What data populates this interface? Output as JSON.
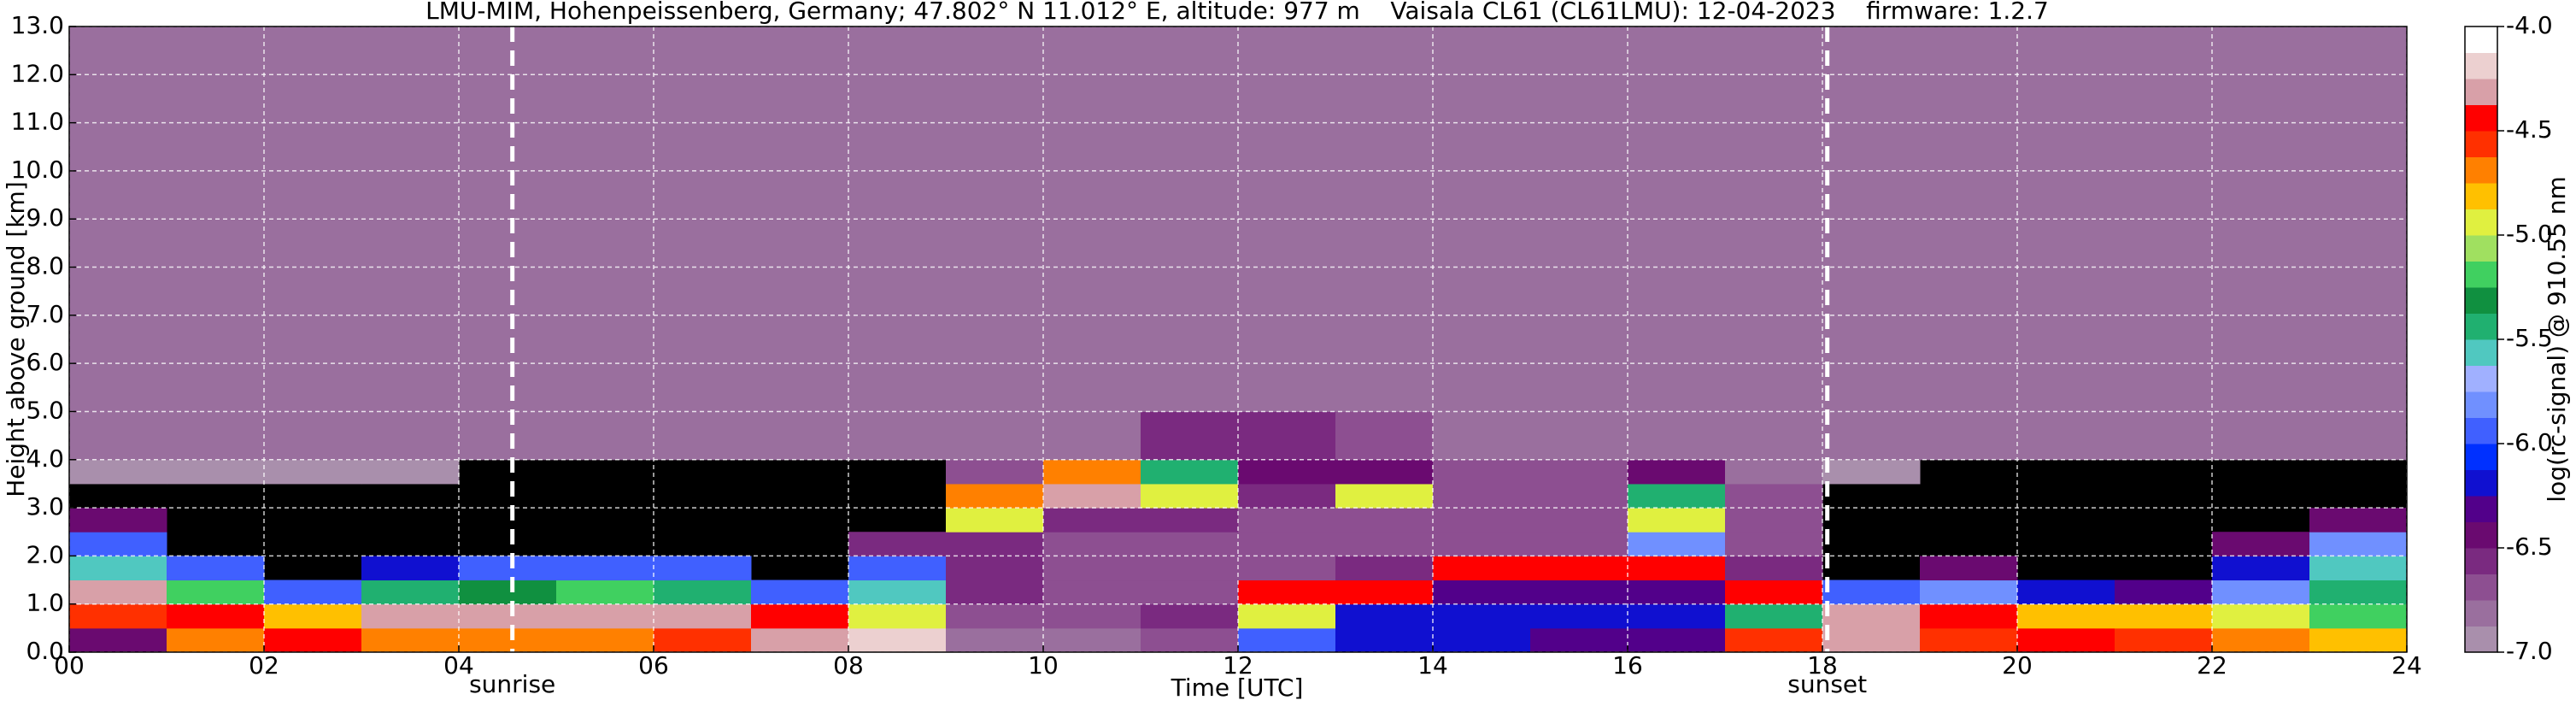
{
  "chart_data": {
    "type": "heatmap",
    "title": "LMU-MIM, Hohenpeissenberg, Germany; 47.802° N 11.012° E, altitude: 977 m    Vaisala CL61 (CL61LMU): 12-04-2023    firmware: 1.2.7",
    "xlabel": "Time [UTC]",
    "ylabel": "Height above ground [km]",
    "colorbar_label": "log(rc-signal) @ 910.55 nm",
    "xlim": [
      0,
      24
    ],
    "ylim": [
      0,
      13
    ],
    "clim": [
      -7,
      -4
    ],
    "grid": true,
    "xticks": [
      {
        "value": 0,
        "label": "00"
      },
      {
        "value": 2,
        "label": "02"
      },
      {
        "value": 4,
        "label": "04"
      },
      {
        "value": 6,
        "label": "06"
      },
      {
        "value": 8,
        "label": "08"
      },
      {
        "value": 10,
        "label": "10"
      },
      {
        "value": 12,
        "label": "12"
      },
      {
        "value": 14,
        "label": "14"
      },
      {
        "value": 16,
        "label": "16"
      },
      {
        "value": 18,
        "label": "18"
      },
      {
        "value": 20,
        "label": "20"
      },
      {
        "value": 22,
        "label": "22"
      },
      {
        "value": 24,
        "label": "24"
      }
    ],
    "yticks": [
      {
        "value": 0,
        "label": "0.0"
      },
      {
        "value": 1,
        "label": "1.0"
      },
      {
        "value": 2,
        "label": "2.0"
      },
      {
        "value": 3,
        "label": "3.0"
      },
      {
        "value": 4,
        "label": "4.0"
      },
      {
        "value": 5,
        "label": "5.0"
      },
      {
        "value": 6,
        "label": "6.0"
      },
      {
        "value": 7,
        "label": "7.0"
      },
      {
        "value": 8,
        "label": "8.0"
      },
      {
        "value": 9,
        "label": "9.0"
      },
      {
        "value": 10,
        "label": "10.0"
      },
      {
        "value": 11,
        "label": "11.0"
      },
      {
        "value": 12,
        "label": "12.0"
      },
      {
        "value": 13,
        "label": "13.0"
      }
    ],
    "cticks": [
      {
        "value": -4,
        "label": "-4.0"
      },
      {
        "value": -4.5,
        "label": "-4.5"
      },
      {
        "value": -5,
        "label": "-5.0"
      },
      {
        "value": -5.5,
        "label": "-5.5"
      },
      {
        "value": -6,
        "label": "-6.0"
      },
      {
        "value": -6.5,
        "label": "-6.5"
      },
      {
        "value": -7,
        "label": "-7.0"
      }
    ],
    "colormap": [
      "#a98fac",
      "#9a6f9e",
      "#8d4f91",
      "#7a2a80",
      "#6a0a70",
      "#52008a",
      "#1010d0",
      "#0030ff",
      "#4060ff",
      "#7090ff",
      "#a0b0ff",
      "#50c8c0",
      "#20b070",
      "#109040",
      "#40d060",
      "#a0e060",
      "#e0f040",
      "#ffc000",
      "#ff8000",
      "#ff3000",
      "#ff0000",
      "#d8a0a8",
      "#ecd0d0",
      "#ffffff"
    ],
    "annotations": [
      {
        "label": "sunrise",
        "x": 4.55
      },
      {
        "label": "sunset",
        "x": 18.05
      }
    ],
    "x_bins": [
      0,
      1,
      2,
      3,
      4,
      5,
      6,
      7,
      8,
      9,
      10,
      11,
      12,
      13,
      14,
      15,
      16,
      17,
      18,
      19,
      20,
      21,
      22,
      23,
      24
    ],
    "y_bins": [
      0,
      0.5,
      1,
      1.5,
      2,
      2.5,
      3,
      3.5,
      4,
      5,
      13
    ],
    "z": [
      [
        -6.5,
        -4.6,
        -4.3,
        -5.6,
        -6.0,
        -6.4,
        null,
        -6.9,
        -6.8,
        -6.8
      ],
      [
        -4.7,
        -4.4,
        -5.2,
        -6.0,
        null,
        null,
        null,
        -6.9,
        -6.8,
        -6.8
      ],
      [
        -4.4,
        -4.8,
        -6.0,
        null,
        null,
        null,
        null,
        -6.9,
        -6.8,
        -6.8
      ],
      [
        -4.7,
        -4.3,
        -5.5,
        -6.2,
        null,
        null,
        null,
        -6.9,
        -6.8,
        -6.8
      ],
      [
        -4.7,
        -4.3,
        -5.3,
        -6.0,
        null,
        null,
        null,
        null,
        -6.8,
        -6.8
      ],
      [
        -4.7,
        -4.3,
        -5.2,
        -6.0,
        null,
        null,
        null,
        null,
        -6.8,
        -6.8
      ],
      [
        -4.6,
        -4.3,
        -5.4,
        -6.0,
        null,
        null,
        null,
        null,
        -6.8,
        -6.8
      ],
      [
        -4.3,
        -4.4,
        -6.0,
        null,
        null,
        null,
        null,
        null,
        -6.8,
        -6.8
      ],
      [
        -4.2,
        -5.0,
        -5.6,
        -6.0,
        -6.6,
        null,
        null,
        null,
        -6.8,
        -6.8
      ],
      [
        -6.8,
        -6.7,
        -6.6,
        -6.6,
        -6.6,
        -5.0,
        -4.7,
        -6.7,
        -6.8,
        -6.8
      ],
      [
        -6.8,
        -6.7,
        -6.7,
        -6.7,
        -6.7,
        -6.6,
        -4.3,
        -4.7,
        -6.8,
        -6.8
      ],
      [
        -6.7,
        -6.6,
        -6.7,
        -6.7,
        -6.7,
        -6.6,
        -4.9,
        -5.5,
        -6.6,
        -6.8
      ],
      [
        -6.0,
        -5.0,
        -4.4,
        -6.7,
        -6.7,
        -6.7,
        -6.6,
        -6.5,
        -6.6,
        -6.8
      ],
      [
        -6.2,
        -6.2,
        -4.5,
        -6.6,
        -6.7,
        -6.7,
        -5.0,
        -6.5,
        -6.7,
        -6.8
      ],
      [
        -6.2,
        -6.2,
        -6.3,
        -4.4,
        -6.7,
        -6.7,
        -6.7,
        -6.7,
        -6.8,
        -6.8
      ],
      [
        -6.3,
        -6.2,
        -6.3,
        -4.4,
        -6.7,
        -6.7,
        -6.7,
        -6.7,
        -6.8,
        -6.8
      ],
      [
        -6.3,
        -6.2,
        -6.3,
        -4.5,
        -5.8,
        -5.0,
        -5.5,
        -6.5,
        -6.8,
        -6.8
      ],
      [
        -4.6,
        -5.5,
        -4.5,
        -6.6,
        -6.7,
        -6.7,
        -6.7,
        -6.8,
        -6.8,
        -6.8
      ],
      [
        -4.3,
        -4.3,
        -6.0,
        null,
        null,
        null,
        null,
        -6.9,
        -6.8,
        -6.8
      ],
      [
        -4.6,
        -4.5,
        -5.8,
        -6.5,
        null,
        null,
        null,
        null,
        -6.8,
        -6.8
      ],
      [
        -4.5,
        -4.8,
        -6.2,
        null,
        null,
        null,
        null,
        null,
        -6.8,
        -6.8
      ],
      [
        -4.6,
        -4.8,
        -6.3,
        null,
        null,
        null,
        null,
        null,
        -6.8,
        -6.8
      ],
      [
        -4.7,
        -5.0,
        -5.8,
        -6.2,
        -6.4,
        null,
        null,
        null,
        -6.8,
        -6.8
      ],
      [
        -4.8,
        -5.2,
        -5.5,
        -5.6,
        -5.8,
        -6.5,
        null,
        null,
        -6.8,
        -6.8
      ]
    ]
  }
}
